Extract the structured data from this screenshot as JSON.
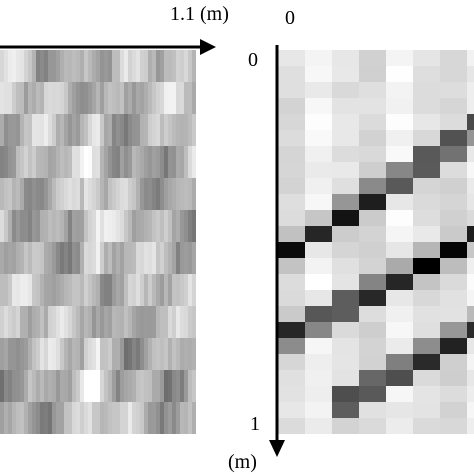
{
  "left_panel": {
    "x_axis_label": "1.1 (m)"
  },
  "right_panel": {
    "x_origin_label": "0",
    "y_origin_label": "0",
    "y_end_label": "1",
    "y_unit_label": "(m)"
  }
}
